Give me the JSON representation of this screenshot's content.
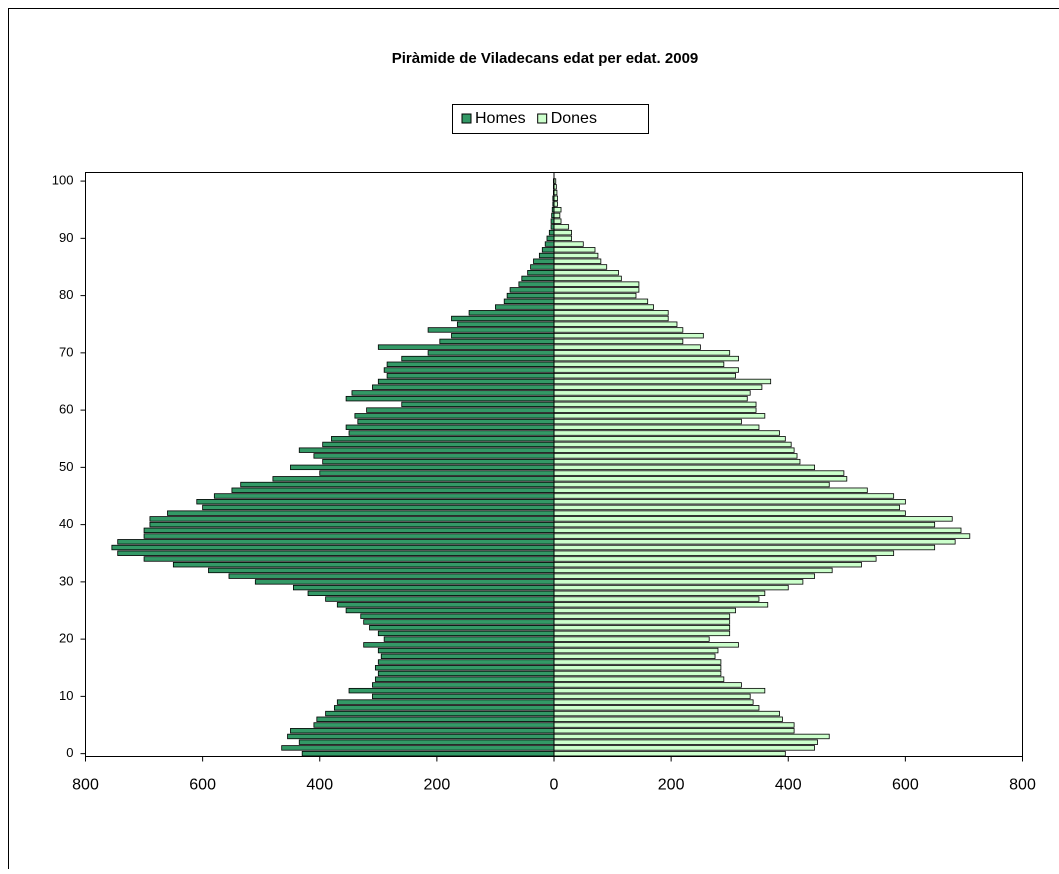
{
  "chart_data": {
    "type": "pyramid",
    "title": "Piràmide de Viladecans edat per edat. 2009",
    "categories": [
      0,
      null,
      null,
      null,
      null,
      null,
      null,
      null,
      null,
      null,
      10,
      null,
      null,
      null,
      null,
      null,
      null,
      null,
      null,
      null,
      20,
      null,
      null,
      null,
      null,
      null,
      null,
      null,
      null,
      null,
      30,
      null,
      null,
      null,
      null,
      null,
      null,
      null,
      null,
      null,
      40,
      null,
      null,
      null,
      null,
      null,
      null,
      null,
      null,
      null,
      50,
      null,
      null,
      null,
      null,
      null,
      null,
      null,
      null,
      null,
      60,
      null,
      null,
      null,
      null,
      null,
      null,
      null,
      null,
      null,
      70,
      null,
      null,
      null,
      null,
      null,
      null,
      null,
      null,
      null,
      80,
      null,
      null,
      null,
      null,
      null,
      null,
      null,
      null,
      null,
      90,
      null,
      null,
      null,
      null,
      null,
      null,
      null,
      null,
      null,
      100
    ],
    "series": [
      {
        "name": "Homes",
        "color": "#339966",
        "values": [
          -430,
          -465,
          -435,
          -455,
          -450,
          -410,
          -405,
          -390,
          -375,
          -370,
          -310,
          -350,
          -310,
          -305,
          -300,
          -305,
          -300,
          -295,
          -300,
          -325,
          -290,
          -300,
          -315,
          -325,
          -330,
          -355,
          -370,
          -390,
          -420,
          -445,
          -510,
          -555,
          -590,
          -650,
          -700,
          -745,
          -755,
          -745,
          -700,
          -700,
          -690,
          -690,
          -660,
          -600,
          -610,
          -580,
          -550,
          -535,
          -480,
          -400,
          -450,
          -395,
          -410,
          -435,
          -395,
          -380,
          -350,
          -355,
          -335,
          -340,
          -320,
          -260,
          -355,
          -345,
          -310,
          -300,
          -285,
          -290,
          -285,
          -260,
          -215,
          -300,
          -195,
          -175,
          -215,
          -165,
          -175,
          -145,
          -100,
          -85,
          -80,
          -75,
          -60,
          -55,
          -45,
          -40,
          -35,
          -25,
          -20,
          -15,
          -12,
          -8,
          -5,
          -5,
          -4,
          -3,
          -2,
          -2,
          -1,
          -1,
          -1
        ]
      },
      {
        "name": "Dones",
        "color": "#ccffcc",
        "values": [
          395,
          445,
          450,
          470,
          410,
          410,
          390,
          385,
          350,
          340,
          335,
          360,
          320,
          290,
          285,
          285,
          285,
          275,
          280,
          315,
          265,
          300,
          300,
          300,
          300,
          310,
          365,
          350,
          360,
          400,
          425,
          445,
          475,
          525,
          550,
          580,
          650,
          685,
          710,
          695,
          650,
          680,
          600,
          590,
          600,
          580,
          535,
          470,
          500,
          495,
          445,
          420,
          415,
          410,
          405,
          395,
          385,
          350,
          320,
          360,
          345,
          345,
          330,
          335,
          355,
          370,
          310,
          315,
          290,
          315,
          300,
          250,
          220,
          255,
          220,
          210,
          195,
          195,
          170,
          160,
          140,
          145,
          145,
          115,
          110,
          90,
          80,
          75,
          70,
          50,
          30,
          30,
          25,
          12,
          10,
          12,
          6,
          6,
          5,
          4,
          3
        ]
      }
    ],
    "xlim": [
      -800,
      800
    ],
    "xticks": [
      {
        "value": -800,
        "label": "800"
      },
      {
        "value": -600,
        "label": "600"
      },
      {
        "value": -400,
        "label": "400"
      },
      {
        "value": -200,
        "label": "200"
      },
      0,
      200,
      400,
      600,
      800
    ],
    "ylim": [
      -0.5,
      101.5
    ],
    "legend": "top"
  }
}
